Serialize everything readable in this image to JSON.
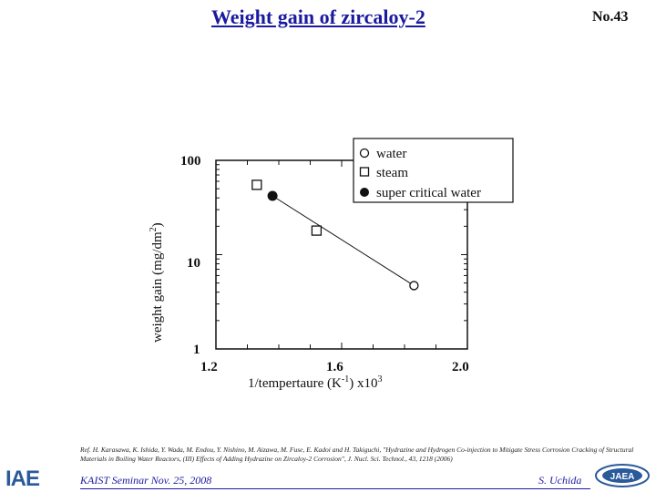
{
  "slide": {
    "title": "Weight gain of zircaloy-2",
    "number": "No.43",
    "reference": "Ref. H. Karasawa, K. Ishida, Y. Wada, M. Endou, Y. Nishino, M. Aizawa, M. Fuse, E. Kadoi and H. Takiguchi, \"Hydrazine and Hydrogen Co-injection to Mitigate Stress Corrosion Cracking of Structural Materials in Boiling Water Reactors, (III) Effects of Adding Hydrazine on Zircaloy-2 Corrosion\", J. Nucl. Sci. Technol., 43, 1218 (2006)",
    "footer_left": "KAIST Seminar  Nov. 25, 2008",
    "footer_right": "S. Uchida",
    "logo_left": "IAE",
    "logo_right": "JAEA",
    "brand_colors": {
      "title": "#1a1aa0",
      "logo": "#2a5a9a"
    }
  },
  "chart_data": {
    "type": "scatter",
    "title": "",
    "xlabel": "1/tempertaure  (K",
    "xlabel_sup": "-1",
    "xlabel_tail": ")  x10",
    "xlabel_tail_sup": "3",
    "ylabel": "weight gain (mg/dm",
    "ylabel_sup": "2",
    "ylabel_tail": ")",
    "xlim": [
      1.2,
      2.0
    ],
    "ylim": [
      1,
      100
    ],
    "yscale": "log",
    "x_ticks": [
      "1.2",
      "1.6",
      "2.0"
    ],
    "y_ticks": [
      "1",
      "10",
      "100"
    ],
    "grid": false,
    "legend_position": "top-right",
    "series": [
      {
        "name": "water",
        "marker": "open-circle",
        "points": [
          {
            "x": 1.83,
            "y": 4.7
          }
        ]
      },
      {
        "name": "steam",
        "marker": "open-square",
        "points": [
          {
            "x": 1.33,
            "y": 55
          },
          {
            "x": 1.52,
            "y": 18
          }
        ]
      },
      {
        "name": "super critical water",
        "marker": "filled-circle",
        "points": [
          {
            "x": 1.38,
            "y": 42
          }
        ]
      }
    ],
    "trend_line": [
      {
        "x": 1.38,
        "y": 42
      },
      {
        "x": 1.83,
        "y": 4.7
      }
    ]
  }
}
